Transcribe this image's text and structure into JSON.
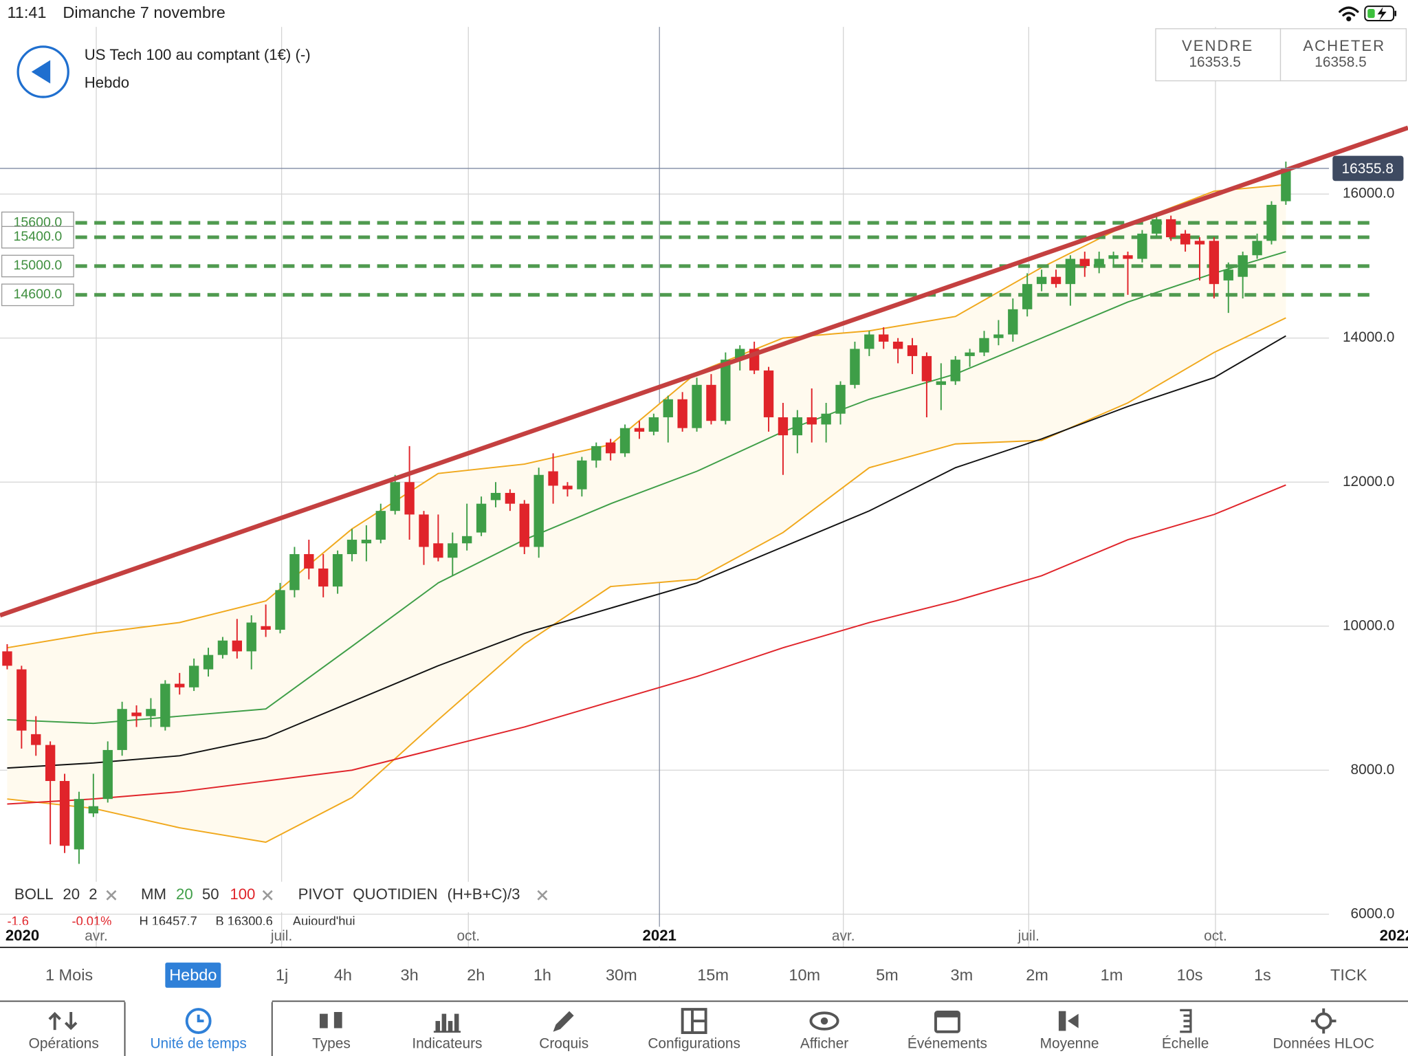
{
  "status_bar": {
    "time": "11:41",
    "date": "Dimanche 7 novembre"
  },
  "header": {
    "instrument": "US Tech 100 au comptant (1€) (-)",
    "timeframe": "Hebdo"
  },
  "quotes": {
    "sell_label": "VENDRE",
    "sell_price": "16353.5",
    "buy_label": "ACHETER",
    "buy_price": "16358.5"
  },
  "chart_data": {
    "type": "candlestick",
    "xlim": [
      -0.5,
      97.5
    ],
    "ylim": [
      5540,
      18320
    ],
    "xticks": [
      {
        "value": -6.8,
        "label": "2020"
      },
      {
        "value": 6.2,
        "label": "avr."
      },
      {
        "value": 19.1,
        "label": "juil."
      },
      {
        "value": 32.1,
        "label": "oct."
      },
      {
        "value": 45.4,
        "label": "2021"
      },
      {
        "value": 58.2,
        "label": "avr."
      },
      {
        "value": 71.1,
        "label": "juil."
      },
      {
        "value": 84.1,
        "label": "oct."
      },
      {
        "value": 96.7,
        "label": "2022"
      }
    ],
    "yticks": [
      {
        "value": 6000,
        "label": "6000.0"
      },
      {
        "value": 8000,
        "label": "8000.0"
      },
      {
        "value": 10000,
        "label": "10000.0"
      },
      {
        "value": 12000,
        "label": "12000.0"
      },
      {
        "value": 14000,
        "label": "14000.0"
      },
      {
        "value": 16000,
        "label": "16000.0"
      }
    ],
    "grid": true,
    "up_color": "#3e9e47",
    "down_color": "#e0242a",
    "open": [
      9650,
      9400,
      8500,
      8350,
      7850,
      6900,
      7400,
      7600,
      8280,
      8800,
      8750,
      8600,
      9200,
      9150,
      9400,
      9600,
      9800,
      9650,
      10000,
      9950,
      10500,
      11000,
      10800,
      10550,
      11000,
      11150,
      11200,
      11600,
      12000,
      11550,
      11150,
      10950,
      11150,
      11300,
      11750,
      11850,
      11700,
      11100,
      12150,
      11950,
      11900,
      12300,
      12550,
      12400,
      12750,
      12700,
      12900,
      13150,
      12750,
      13350,
      12850,
      13700,
      13850,
      13550,
      12900,
      12650,
      12900,
      12800,
      12950,
      13350,
      13850,
      14050,
      13950,
      13900,
      13750,
      13350,
      13400,
      13750,
      13800,
      14000,
      14050,
      14400,
      14750,
      14850,
      14750,
      15100,
      15000,
      15100,
      15150,
      15100,
      15450,
      15650,
      15450,
      15350,
      15350,
      14800,
      14850,
      15150,
      15350,
      15900
    ],
    "high": [
      9750,
      9450,
      8750,
      8400,
      7950,
      7700,
      7950,
      8400,
      8950,
      8900,
      9000,
      9250,
      9350,
      9550,
      9700,
      9850,
      10100,
      10150,
      10300,
      10600,
      11100,
      11200,
      11000,
      11050,
      11350,
      11400,
      11700,
      12100,
      12500,
      11600,
      11550,
      11300,
      11700,
      11800,
      12000,
      11900,
      11750,
      12200,
      12400,
      12000,
      12350,
      12550,
      12600,
      12800,
      12850,
      12950,
      13200,
      13250,
      13450,
      13500,
      13800,
      13900,
      13950,
      13600,
      13100,
      13000,
      13300,
      13100,
      13400,
      13950,
      14100,
      14150,
      14000,
      14000,
      13800,
      13650,
      13750,
      13850,
      14100,
      14250,
      14550,
      14900,
      14950,
      14950,
      15150,
      15200,
      15200,
      15200,
      15200,
      15500,
      15700,
      15700,
      15500,
      15400,
      15400,
      15050,
      15200,
      15450,
      15900,
      16450
    ],
    "low": [
      9400,
      8300,
      8200,
      6970,
      6850,
      6700,
      7350,
      7550,
      8200,
      8600,
      8600,
      8550,
      9050,
      9100,
      9300,
      9550,
      9550,
      9400,
      9850,
      9900,
      10400,
      10650,
      10400,
      10450,
      10900,
      10900,
      11150,
      11550,
      11200,
      10850,
      10900,
      10700,
      11050,
      11250,
      11650,
      11600,
      11000,
      10950,
      11700,
      11800,
      11800,
      12200,
      12300,
      12350,
      12600,
      12650,
      12550,
      12700,
      12700,
      12800,
      12800,
      13550,
      13500,
      12700,
      12100,
      12400,
      12550,
      12550,
      12800,
      13300,
      13750,
      13850,
      13650,
      13500,
      12900,
      13000,
      13350,
      13600,
      13750,
      13900,
      13950,
      14300,
      14650,
      14700,
      14450,
      14850,
      14900,
      15000,
      14600,
      15050,
      15400,
      15350,
      15200,
      14800,
      14550,
      14350,
      14550,
      15100,
      15300,
      15850
    ],
    "close": [
      9450,
      8550,
      8350,
      7850,
      6950,
      7600,
      7500,
      8280,
      8850,
      8750,
      8850,
      9200,
      9150,
      9450,
      9600,
      9800,
      9650,
      10050,
      9950,
      10500,
      11000,
      10800,
      10550,
      11000,
      11200,
      11200,
      11600,
      12000,
      11550,
      11100,
      10950,
      11150,
      11250,
      11700,
      11850,
      11700,
      11100,
      12100,
      11950,
      11900,
      12300,
      12500,
      12400,
      12750,
      12700,
      12900,
      13150,
      12750,
      13350,
      12850,
      13700,
      13850,
      13550,
      12900,
      12650,
      12900,
      12800,
      12950,
      13350,
      13850,
      14050,
      13950,
      13850,
      13750,
      13400,
      13400,
      13700,
      13800,
      14000,
      14050,
      14400,
      14750,
      14850,
      14750,
      15100,
      15000,
      15100,
      15150,
      15100,
      15450,
      15650,
      15400,
      15300,
      15300,
      14750,
      14950,
      15150,
      15350,
      15850,
      16355.8
    ],
    "band_fill": "#fffaee",
    "overlays": [
      {
        "color": "#f0a81c",
        "x": [
          0,
          6,
          12,
          18,
          24,
          30,
          36,
          42,
          48,
          54,
          60,
          66,
          72,
          78,
          84,
          89
        ],
        "values": [
          9700,
          9900,
          10050,
          10350,
          11350,
          12120,
          12250,
          12520,
          13520,
          14000,
          14100,
          14300,
          14980,
          15580,
          16040,
          16130
        ]
      },
      {
        "color": "#f0a81c",
        "x": [
          0,
          6,
          12,
          18,
          24,
          30,
          36,
          42,
          48,
          54,
          60,
          66,
          72,
          78,
          84,
          89
        ],
        "values": [
          7600,
          7470,
          7200,
          7000,
          7620,
          8700,
          9750,
          10550,
          10650,
          11300,
          12200,
          12530,
          12580,
          13100,
          13800,
          14280
        ]
      },
      {
        "color": "#3e9e47",
        "x": [
          0,
          6,
          12,
          18,
          24,
          30,
          36,
          42,
          48,
          54,
          60,
          66,
          72,
          78,
          84,
          89
        ],
        "values": [
          8700,
          8650,
          8750,
          8850,
          9720,
          10600,
          11200,
          11700,
          12150,
          12700,
          13150,
          13500,
          14000,
          14500,
          14900,
          15200
        ]
      },
      {
        "color": "#111111",
        "x": [
          0,
          6,
          12,
          18,
          24,
          30,
          36,
          42,
          48,
          54,
          60,
          66,
          72,
          78,
          84,
          89
        ],
        "values": [
          8030,
          8100,
          8200,
          8450,
          8950,
          9450,
          9900,
          10250,
          10600,
          11100,
          11600,
          12200,
          12600,
          13050,
          13450,
          14030
        ]
      },
      {
        "color": "#e0242a",
        "x": [
          0,
          6,
          12,
          18,
          24,
          30,
          36,
          42,
          48,
          54,
          60,
          66,
          72,
          78,
          84,
          89
        ],
        "values": [
          7530,
          7600,
          7700,
          7850,
          8000,
          8300,
          8600,
          8950,
          9300,
          9700,
          10050,
          10350,
          10700,
          11200,
          11550,
          11960
        ]
      }
    ],
    "trendline": {
      "color": "#c44040",
      "x": [
        -0.5,
        97.5
      ],
      "values": [
        10150,
        16920
      ]
    },
    "levels": [
      {
        "value": 15600,
        "label": "15600.0"
      },
      {
        "value": 15400,
        "label": "15400.0"
      },
      {
        "value": 15000,
        "label": "15000.0"
      },
      {
        "value": 14600,
        "label": "14600.0"
      }
    ],
    "level_color": "#4f9a4f",
    "last_price": 16355.8
  },
  "indicator_legend": {
    "boll": [
      "BOLL",
      "20",
      "2"
    ],
    "mm": [
      "MM",
      "20",
      "50",
      "100"
    ],
    "pivot": [
      "PIVOT",
      "QUOTIDIEN",
      "(H+B+C)/3"
    ]
  },
  "stats_row": [
    "-1.6",
    "-0.01%",
    "H 16457.7",
    "B 16300.6",
    "Aujourd'hui"
  ],
  "timeframes": [
    "1 Mois",
    "Hebdo",
    "1j",
    "4h",
    "3h",
    "2h",
    "1h",
    "30m",
    "15m",
    "10m",
    "5m",
    "3m",
    "2m",
    "1m",
    "10s",
    "1s",
    "TICK"
  ],
  "selected_timeframe": 1,
  "toolbar": [
    "Opérations",
    "Unité de temps",
    "Types",
    "Indicateurs",
    "Croquis",
    "Configurations",
    "Afficher",
    "Événements",
    "Moyenne",
    "Échelle",
    "Données HLOC"
  ],
  "selected_tool": 1
}
